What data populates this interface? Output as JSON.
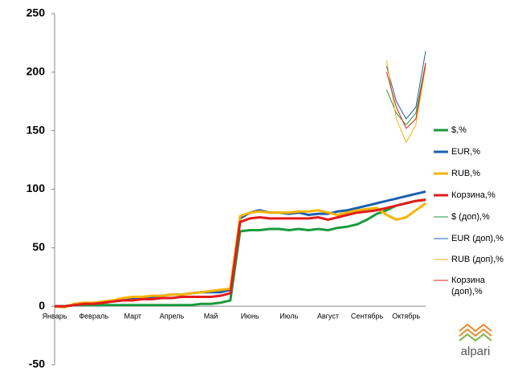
{
  "chart_data": {
    "type": "line",
    "categories": [
      "Январь",
      null,
      null,
      null,
      "Февраль",
      null,
      null,
      null,
      "Март",
      null,
      null,
      null,
      "Апрель",
      null,
      null,
      null,
      "Май",
      null,
      null,
      null,
      "Июнь",
      null,
      null,
      null,
      "Июль",
      null,
      null,
      null,
      "Август",
      null,
      null,
      null,
      "Сентябрь",
      null,
      null,
      null,
      "Октябрь",
      null,
      null
    ],
    "series": [
      {
        "name": "$,%",
        "color": "#1a9a3c",
        "width": 3,
        "values": [
          0,
          0,
          1,
          1,
          1,
          1,
          1,
          1,
          1,
          1,
          1,
          1,
          1,
          1,
          1,
          2,
          2,
          3,
          5,
          64,
          65,
          65,
          66,
          66,
          65,
          66,
          65,
          66,
          65,
          67,
          68,
          70,
          74,
          79,
          82,
          86,
          88,
          90,
          91
        ]
      },
      {
        "name": "EUR,%",
        "color": "#1c5fb0",
        "width": 3,
        "values": [
          0,
          0,
          1,
          2,
          3,
          3,
          4,
          5,
          6,
          7,
          8,
          9,
          10,
          10,
          11,
          12,
          12,
          12,
          14,
          75,
          80,
          82,
          80,
          80,
          79,
          80,
          78,
          79,
          79,
          81,
          82,
          84,
          86,
          88,
          90,
          92,
          94,
          96,
          98
        ]
      },
      {
        "name": "RUB,%",
        "color": "#f5b400",
        "width": 3,
        "values": [
          0,
          -1,
          2,
          3,
          3,
          4,
          5,
          7,
          8,
          8,
          9,
          9,
          10,
          10,
          11,
          12,
          13,
          14,
          15,
          77,
          80,
          81,
          80,
          80,
          80,
          81,
          81,
          82,
          80,
          78,
          80,
          82,
          83,
          84,
          78,
          74,
          76,
          82,
          88
        ]
      },
      {
        "name": "Корзина,%",
        "color": "#e31b1b",
        "width": 3,
        "values": [
          0,
          0,
          1,
          2,
          2,
          3,
          4,
          5,
          5,
          6,
          6,
          7,
          7,
          8,
          8,
          8,
          8,
          9,
          11,
          72,
          75,
          76,
          75,
          75,
          75,
          75,
          75,
          76,
          74,
          76,
          78,
          80,
          81,
          82,
          84,
          86,
          88,
          90,
          91
        ]
      },
      {
        "name": "$ (доп),%",
        "color": "#1a9a3c",
        "width": 1,
        "values": [
          null,
          null,
          null,
          null,
          null,
          null,
          null,
          null,
          null,
          null,
          null,
          null,
          null,
          null,
          null,
          null,
          null,
          null,
          null,
          null,
          null,
          null,
          null,
          null,
          null,
          null,
          null,
          null,
          null,
          null,
          null,
          null,
          null,
          null,
          185,
          165,
          155,
          165,
          208
        ]
      },
      {
        "name": "EUR (доп),%",
        "color": "#1c5fb0",
        "width": 1,
        "values": [
          null,
          null,
          null,
          null,
          null,
          null,
          null,
          null,
          null,
          null,
          null,
          null,
          null,
          null,
          null,
          null,
          null,
          null,
          null,
          null,
          null,
          null,
          null,
          null,
          null,
          null,
          null,
          null,
          null,
          null,
          null,
          null,
          null,
          null,
          205,
          175,
          160,
          170,
          218
        ]
      },
      {
        "name": "RUB (доп),%",
        "color": "#f5b400",
        "width": 1,
        "values": [
          null,
          null,
          null,
          null,
          null,
          null,
          null,
          null,
          null,
          null,
          null,
          null,
          null,
          null,
          null,
          null,
          null,
          null,
          null,
          null,
          null,
          null,
          null,
          null,
          null,
          null,
          null,
          null,
          null,
          null,
          null,
          null,
          null,
          null,
          210,
          160,
          140,
          155,
          205
        ]
      },
      {
        "name": "Корзина (доп),%",
        "color": "#e31b1b",
        "width": 1,
        "values": [
          null,
          null,
          null,
          null,
          null,
          null,
          null,
          null,
          null,
          null,
          null,
          null,
          null,
          null,
          null,
          null,
          null,
          null,
          null,
          null,
          null,
          null,
          null,
          null,
          null,
          null,
          null,
          null,
          null,
          null,
          null,
          null,
          null,
          null,
          200,
          170,
          152,
          160,
          208
        ]
      }
    ],
    "ylim": [
      -50,
      250
    ],
    "yticks": [
      -50,
      0,
      50,
      100,
      150,
      200,
      250
    ],
    "grid": false,
    "legend": "right"
  },
  "logo": "alpari"
}
